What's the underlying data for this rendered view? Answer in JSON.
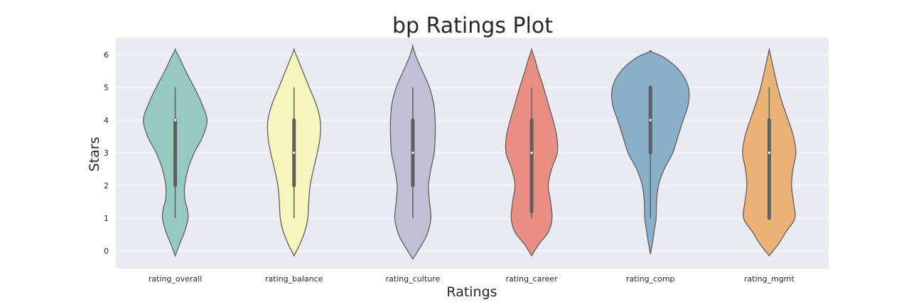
{
  "chart_data": {
    "type": "violin",
    "title": "bp Ratings Plot",
    "xlabel": "Ratings",
    "ylabel": "Stars",
    "ylim": [
      -0.5,
      6.5
    ],
    "yticks": [
      0,
      1,
      2,
      3,
      4,
      5,
      6
    ],
    "grid": true,
    "categories": [
      "rating_overall",
      "rating_balance",
      "rating_culture",
      "rating_career",
      "rating_comp",
      "rating_mgmt"
    ],
    "colors": [
      "#96cac1",
      "#f6f6bc",
      "#c1bed6",
      "#ea8e83",
      "#8aafc9",
      "#eab375"
    ],
    "violins": [
      {
        "name": "rating_overall",
        "min": 1,
        "q1": 2,
        "median": 4,
        "q3": 4,
        "max": 5,
        "density_extent": [
          -0.15,
          6.15
        ],
        "profile": [
          [
            -0.15,
            0
          ],
          [
            0.2,
            0.09
          ],
          [
            0.6,
            0.2
          ],
          [
            1.0,
            0.27
          ],
          [
            1.3,
            0.25
          ],
          [
            1.6,
            0.2
          ],
          [
            2.0,
            0.2
          ],
          [
            2.5,
            0.27
          ],
          [
            3.0,
            0.4
          ],
          [
            3.5,
            0.58
          ],
          [
            4.0,
            0.67
          ],
          [
            4.5,
            0.56
          ],
          [
            5.0,
            0.4
          ],
          [
            5.5,
            0.22
          ],
          [
            5.9,
            0.09
          ],
          [
            6.15,
            0
          ]
        ]
      },
      {
        "name": "rating_balance",
        "min": 1,
        "q1": 2,
        "median": 3,
        "q3": 4,
        "max": 5,
        "density_extent": [
          -0.15,
          6.15
        ],
        "profile": [
          [
            -0.15,
            0
          ],
          [
            0.2,
            0.12
          ],
          [
            0.6,
            0.23
          ],
          [
            1.0,
            0.29
          ],
          [
            1.5,
            0.31
          ],
          [
            2.0,
            0.34
          ],
          [
            2.5,
            0.41
          ],
          [
            3.0,
            0.49
          ],
          [
            3.5,
            0.55
          ],
          [
            4.0,
            0.55
          ],
          [
            4.5,
            0.46
          ],
          [
            5.0,
            0.32
          ],
          [
            5.5,
            0.18
          ],
          [
            5.9,
            0.07
          ],
          [
            6.15,
            0
          ]
        ]
      },
      {
        "name": "rating_culture",
        "min": 1,
        "q1": 2,
        "median": 3,
        "q3": 4,
        "max": 5,
        "density_extent": [
          -0.25,
          6.25
        ],
        "profile": [
          [
            -0.25,
            0
          ],
          [
            0.1,
            0.15
          ],
          [
            0.5,
            0.3
          ],
          [
            1.0,
            0.38
          ],
          [
            1.5,
            0.35
          ],
          [
            2.0,
            0.33
          ],
          [
            2.5,
            0.38
          ],
          [
            3.0,
            0.45
          ],
          [
            3.5,
            0.47
          ],
          [
            4.0,
            0.47
          ],
          [
            4.5,
            0.44
          ],
          [
            5.0,
            0.35
          ],
          [
            5.5,
            0.2
          ],
          [
            5.9,
            0.08
          ],
          [
            6.25,
            0
          ]
        ]
      },
      {
        "name": "rating_career",
        "min": 1,
        "q1": 1.2,
        "median": 3,
        "q3": 4,
        "max": 5,
        "density_extent": [
          -0.15,
          6.15
        ],
        "profile": [
          [
            -0.15,
            0
          ],
          [
            0.2,
            0.15
          ],
          [
            0.6,
            0.36
          ],
          [
            1.0,
            0.43
          ],
          [
            1.5,
            0.4
          ],
          [
            2.0,
            0.35
          ],
          [
            2.5,
            0.42
          ],
          [
            3.0,
            0.54
          ],
          [
            3.5,
            0.53
          ],
          [
            4.0,
            0.45
          ],
          [
            4.5,
            0.35
          ],
          [
            5.0,
            0.25
          ],
          [
            5.5,
            0.14
          ],
          [
            5.9,
            0.06
          ],
          [
            6.15,
            0
          ]
        ]
      },
      {
        "name": "rating_comp",
        "min": 1,
        "q1": 3,
        "median": 4,
        "q3": 5,
        "max": 5,
        "density_extent": [
          -0.1,
          6.1
        ],
        "profile": [
          [
            -0.1,
            0
          ],
          [
            0.3,
            0.05
          ],
          [
            0.7,
            0.09
          ],
          [
            1.0,
            0.12
          ],
          [
            1.5,
            0.13
          ],
          [
            2.0,
            0.17
          ],
          [
            2.5,
            0.29
          ],
          [
            3.0,
            0.47
          ],
          [
            3.5,
            0.58
          ],
          [
            4.0,
            0.69
          ],
          [
            4.5,
            0.8
          ],
          [
            5.0,
            0.8
          ],
          [
            5.5,
            0.62
          ],
          [
            5.9,
            0.3
          ],
          [
            6.1,
            0
          ]
        ]
      },
      {
        "name": "rating_mgmt",
        "min": 1,
        "q1": 1,
        "median": 3,
        "q3": 4,
        "max": 5,
        "density_extent": [
          -0.15,
          6.15
        ],
        "profile": [
          [
            -0.15,
            0
          ],
          [
            0.2,
            0.19
          ],
          [
            0.6,
            0.36
          ],
          [
            1.0,
            0.54
          ],
          [
            1.5,
            0.51
          ],
          [
            2.0,
            0.47
          ],
          [
            2.5,
            0.5
          ],
          [
            3.0,
            0.56
          ],
          [
            3.5,
            0.51
          ],
          [
            4.0,
            0.4
          ],
          [
            4.5,
            0.28
          ],
          [
            5.0,
            0.18
          ],
          [
            5.5,
            0.1
          ],
          [
            5.9,
            0.04
          ],
          [
            6.15,
            0
          ]
        ]
      }
    ]
  }
}
